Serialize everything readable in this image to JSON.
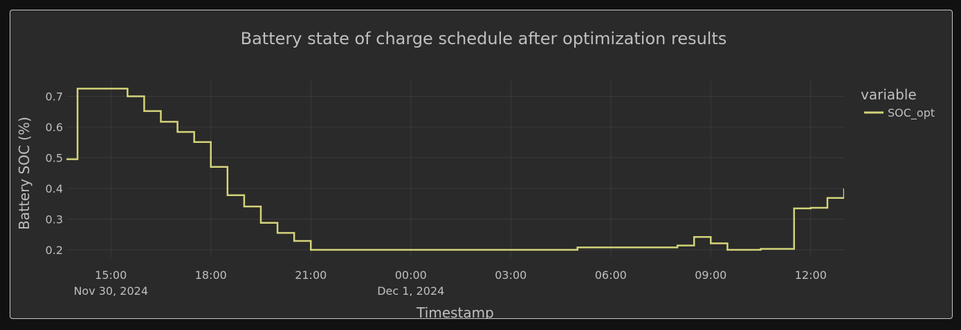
{
  "chart_data": {
    "type": "line",
    "line_shape": "step",
    "title": "Battery state of charge schedule after optimization results",
    "xlabel": "Timestamp",
    "ylabel": "Battery SOC (%)",
    "ylim": [
      0.175,
      0.755
    ],
    "yticks": [
      0.2,
      0.3,
      0.4,
      0.5,
      0.6,
      0.7
    ],
    "xlim": [
      "2024-11-30 13:40",
      "2024-12-01 13:00"
    ],
    "xticks": [
      {
        "t": "2024-11-30 15:00",
        "label": "15:00",
        "date": "Nov 30, 2024"
      },
      {
        "t": "2024-11-30 18:00",
        "label": "18:00",
        "date": ""
      },
      {
        "t": "2024-11-30 21:00",
        "label": "21:00",
        "date": ""
      },
      {
        "t": "2024-12-01 00:00",
        "label": "00:00",
        "date": "Dec 1, 2024"
      },
      {
        "t": "2024-12-01 03:00",
        "label": "03:00",
        "date": ""
      },
      {
        "t": "2024-12-01 06:00",
        "label": "06:00",
        "date": ""
      },
      {
        "t": "2024-12-01 09:00",
        "label": "09:00",
        "date": ""
      },
      {
        "t": "2024-12-01 12:00",
        "label": "12:00",
        "date": ""
      }
    ],
    "grid": true,
    "legend": {
      "title": "variable",
      "position": "right"
    },
    "series": [
      {
        "name": "SOC_opt",
        "color": "#d4d47a",
        "x": [
          "2024-11-30 13:30",
          "2024-11-30 14:00",
          "2024-11-30 14:30",
          "2024-11-30 15:00",
          "2024-11-30 15:30",
          "2024-11-30 16:00",
          "2024-11-30 16:30",
          "2024-11-30 17:00",
          "2024-11-30 17:30",
          "2024-11-30 18:00",
          "2024-11-30 18:30",
          "2024-11-30 19:00",
          "2024-11-30 19:30",
          "2024-11-30 20:00",
          "2024-11-30 20:30",
          "2024-11-30 21:00",
          "2024-12-01 05:00",
          "2024-12-01 08:00",
          "2024-12-01 08:30",
          "2024-12-01 09:00",
          "2024-12-01 09:30",
          "2024-12-01 10:30",
          "2024-12-01 11:30",
          "2024-12-01 12:00",
          "2024-12-01 12:30",
          "2024-12-01 13:00"
        ],
        "y": [
          0.495,
          0.725,
          0.725,
          0.725,
          0.7,
          0.652,
          0.617,
          0.584,
          0.551,
          0.47,
          0.378,
          0.341,
          0.288,
          0.255,
          0.229,
          0.2,
          0.208,
          0.214,
          0.242,
          0.221,
          0.2,
          0.203,
          0.335,
          0.337,
          0.369,
          0.4
        ]
      }
    ]
  }
}
